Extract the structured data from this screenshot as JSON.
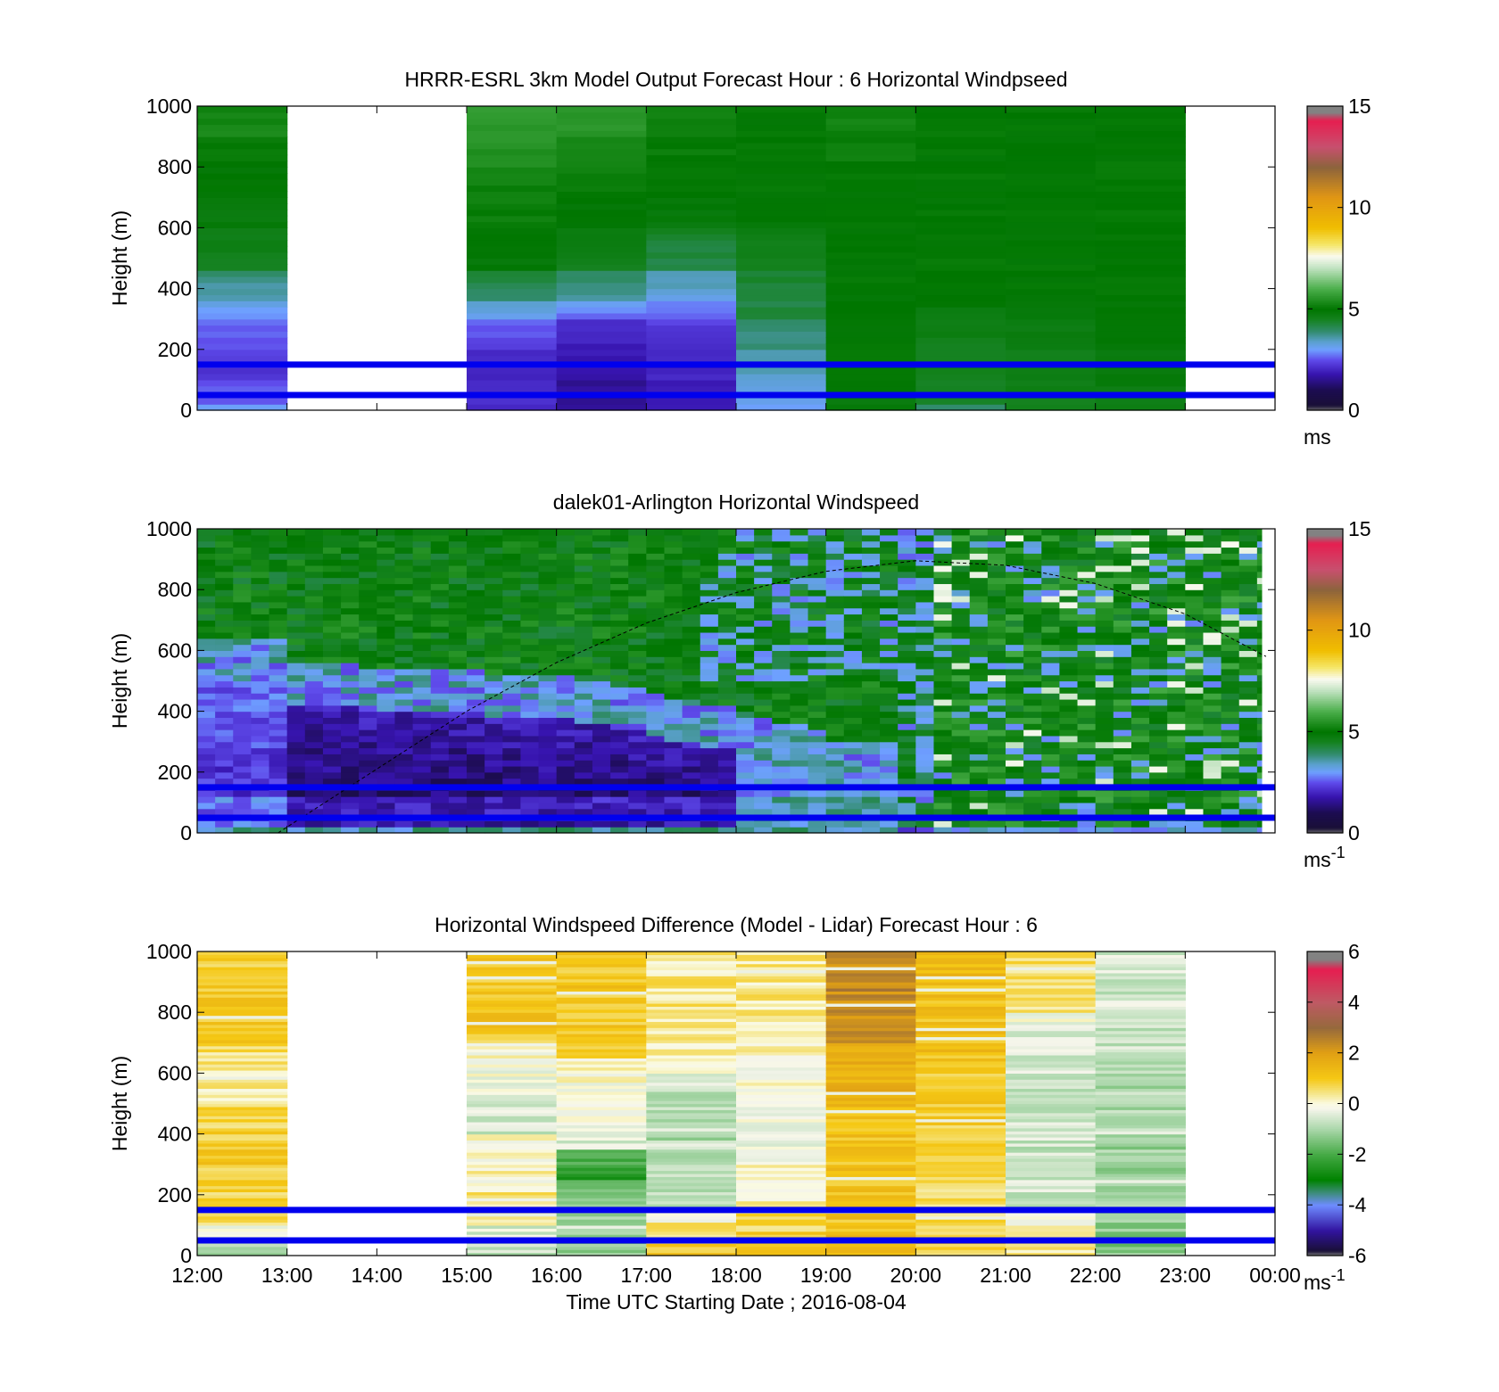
{
  "chart_data": [
    {
      "type": "heatmap",
      "title": "HRRR-ESRL 3km Model Output   Forecast Hour : 6 Horizontal Windpseed",
      "ylabel": "Height (m)",
      "xlabel": "",
      "ylim": [
        0,
        1000
      ],
      "yticks": [
        "0",
        "200",
        "400",
        "600",
        "800",
        "1000"
      ],
      "xticks": [
        "12:00",
        "13:00",
        "14:00",
        "15:00",
        "16:00",
        "17:00",
        "18:00",
        "19:00",
        "20:00",
        "21:00",
        "22:00",
        "23:00",
        "00:00"
      ],
      "xtick_labels_shown": false,
      "colorbar": {
        "min": 0,
        "max": 15,
        "ticks": [
          "0",
          "5",
          "10",
          "15"
        ],
        "unit": "ms",
        "unit_sup": "",
        "scale": "speed"
      },
      "reference_lines_m": [
        150,
        50
      ],
      "reference_line_color": "#0000ee",
      "hour_columns": [
        {
          "start_hour": 0,
          "levels_m": [
            0,
            20,
            100,
            200,
            300,
            350,
            450,
            600,
            700,
            800,
            900,
            1000
          ],
          "speeds": [
            3.0,
            2.6,
            2.2,
            2.5,
            3.0,
            3.4,
            4.5,
            4.8,
            4.9,
            5.0,
            5.3
          ]
        },
        {
          "start_hour": 3,
          "levels_m": [
            0,
            20,
            100,
            200,
            300,
            350,
            450,
            600,
            700,
            800,
            900,
            1000
          ],
          "speeds": [
            2.0,
            2.2,
            2.0,
            2.4,
            3.2,
            3.8,
            4.9,
            5.1,
            5.2,
            5.4,
            5.6
          ]
        },
        {
          "start_hour": 4,
          "levels_m": [
            0,
            20,
            100,
            200,
            300,
            350,
            450,
            600,
            700,
            800,
            900,
            1000
          ],
          "speeds": [
            1.6,
            1.5,
            1.8,
            1.9,
            2.7,
            3.5,
            4.6,
            4.9,
            5.1,
            5.3,
            5.5
          ]
        },
        {
          "start_hour": 5,
          "levels_m": [
            0,
            20,
            100,
            200,
            300,
            350,
            450,
            600,
            700,
            800,
            900,
            1000
          ],
          "speeds": [
            1.8,
            1.9,
            2.0,
            2.2,
            2.6,
            3.2,
            4.1,
            4.8,
            5.0,
            5.1,
            5.2
          ]
        },
        {
          "start_hour": 6,
          "levels_m": [
            0,
            20,
            100,
            200,
            300,
            350,
            450,
            600,
            700,
            800,
            900,
            1000
          ],
          "speeds": [
            3.0,
            3.2,
            3.4,
            3.8,
            4.2,
            4.3,
            4.4,
            4.9,
            5.0,
            5.0,
            5.0
          ]
        },
        {
          "start_hour": 7,
          "levels_m": [
            0,
            20,
            100,
            200,
            300,
            350,
            450,
            600,
            700,
            800,
            900,
            1000
          ],
          "speeds": [
            4.8,
            4.8,
            5.0,
            5.0,
            5.0,
            5.0,
            5.0,
            5.0,
            5.0,
            5.1,
            5.2
          ]
        },
        {
          "start_hour": 8,
          "levels_m": [
            0,
            20,
            100,
            200,
            300,
            350,
            450,
            600,
            700,
            800,
            900,
            1000
          ],
          "speeds": [
            3.8,
            4.4,
            4.5,
            4.6,
            4.8,
            4.9,
            5.0,
            5.0,
            5.0,
            5.0,
            5.0
          ]
        },
        {
          "start_hour": 9,
          "levels_m": [
            0,
            20,
            100,
            200,
            300,
            350,
            450,
            600,
            700,
            800,
            900,
            1000
          ],
          "speeds": [
            4.5,
            4.6,
            4.6,
            4.7,
            4.9,
            5.0,
            5.0,
            5.0,
            5.0,
            5.0,
            5.0
          ]
        },
        {
          "start_hour": 10,
          "levels_m": [
            0,
            20,
            100,
            200,
            300,
            350,
            450,
            600,
            700,
            800,
            900,
            1000
          ],
          "speeds": [
            4.6,
            4.7,
            4.8,
            4.9,
            5.0,
            5.0,
            5.0,
            5.0,
            5.0,
            5.0,
            5.0
          ]
        }
      ]
    },
    {
      "type": "heatmap",
      "title": "dalek01-Arlington  Horizontal Windspeed",
      "ylabel": "Height (m)",
      "xlabel": "",
      "ylim": [
        0,
        1000
      ],
      "yticks": [
        "0",
        "200",
        "400",
        "600",
        "800",
        "1000"
      ],
      "xticks": [
        "12:00",
        "13:00",
        "14:00",
        "15:00",
        "16:00",
        "17:00",
        "18:00",
        "19:00",
        "20:00",
        "21:00",
        "22:00",
        "23:00",
        "00:00"
      ],
      "xtick_labels_shown": false,
      "data_end_hour": 11.85,
      "colorbar": {
        "min": 0,
        "max": 15,
        "ticks": [
          "0",
          "5",
          "10",
          "15"
        ],
        "unit": "ms",
        "unit_sup": "-1",
        "scale": "speed"
      },
      "reference_lines_m": [
        150,
        50
      ],
      "reference_line_color": "#0000ee",
      "boundary_curve": {
        "hours": [
          0.9,
          2,
          3,
          4,
          5,
          6,
          7,
          8,
          9,
          10,
          11,
          11.9
        ],
        "heights_m": [
          0,
          210,
          400,
          560,
          690,
          790,
          860,
          895,
          880,
          820,
          720,
          580
        ]
      }
    },
    {
      "type": "heatmap",
      "title": "Horizontal Windspeed Difference (Model - Lidar) Forecast Hour : 6",
      "ylabel": "Height (m)",
      "xlabel": "Time UTC  Starting Date ; 2016-08-04",
      "ylim": [
        0,
        1000
      ],
      "yticks": [
        "0",
        "200",
        "400",
        "600",
        "800",
        "1000"
      ],
      "xticks": [
        "12:00",
        "13:00",
        "14:00",
        "15:00",
        "16:00",
        "17:00",
        "18:00",
        "19:00",
        "20:00",
        "21:00",
        "22:00",
        "23:00",
        "00:00"
      ],
      "xtick_labels_shown": true,
      "colorbar": {
        "min": -6,
        "max": 6,
        "ticks": [
          "-6",
          "-4",
          "-2",
          "0",
          "2",
          "4",
          "6"
        ],
        "unit": "ms",
        "unit_sup": "-1",
        "scale": "diff"
      },
      "reference_lines_m": [
        150,
        50
      ],
      "reference_line_color": "#0000ee",
      "hour_columns": [
        {
          "start_hour": 0,
          "levels_m": [
            0,
            100,
            300,
            500,
            600,
            700,
            1000
          ],
          "diffs": [
            -0.8,
            0.6,
            1.0,
            0.2,
            0.3,
            0.9
          ]
        },
        {
          "start_hour": 3,
          "levels_m": [
            0,
            100,
            200,
            400,
            700,
            1000
          ],
          "diffs": [
            -0.8,
            0.0,
            0.4,
            -0.6,
            1.0
          ]
        },
        {
          "start_hour": 4,
          "levels_m": [
            0,
            150,
            250,
            350,
            650,
            1000
          ],
          "diffs": [
            -1.2,
            -0.8,
            -2.5,
            -0.5,
            1.0
          ]
        },
        {
          "start_hour": 5,
          "levels_m": [
            0,
            150,
            400,
            600,
            700,
            1000
          ],
          "diffs": [
            1.0,
            -0.8,
            -1.1,
            0.1,
            0.4
          ]
        },
        {
          "start_hour": 6,
          "levels_m": [
            0,
            150,
            300,
            600,
            750,
            1000
          ],
          "diffs": [
            1.0,
            0.2,
            -0.1,
            0.0,
            0.4
          ]
        },
        {
          "start_hour": 7,
          "levels_m": [
            0,
            100,
            500,
            700,
            1000
          ],
          "diffs": [
            1.2,
            1.1,
            1.4,
            2.4
          ]
        },
        {
          "start_hour": 8,
          "levels_m": [
            0,
            150,
            400,
            600,
            1000
          ],
          "diffs": [
            0.8,
            0.5,
            0.8,
            1.2
          ]
        },
        {
          "start_hour": 9,
          "levels_m": [
            0,
            150,
            500,
            800,
            1000
          ],
          "diffs": [
            0.3,
            -0.6,
            -0.8,
            0.5
          ]
        },
        {
          "start_hour": 10,
          "levels_m": [
            0,
            150,
            400,
            700,
            1000
          ],
          "diffs": [
            -1.4,
            -1.2,
            -1.0,
            -0.6
          ]
        }
      ]
    }
  ]
}
